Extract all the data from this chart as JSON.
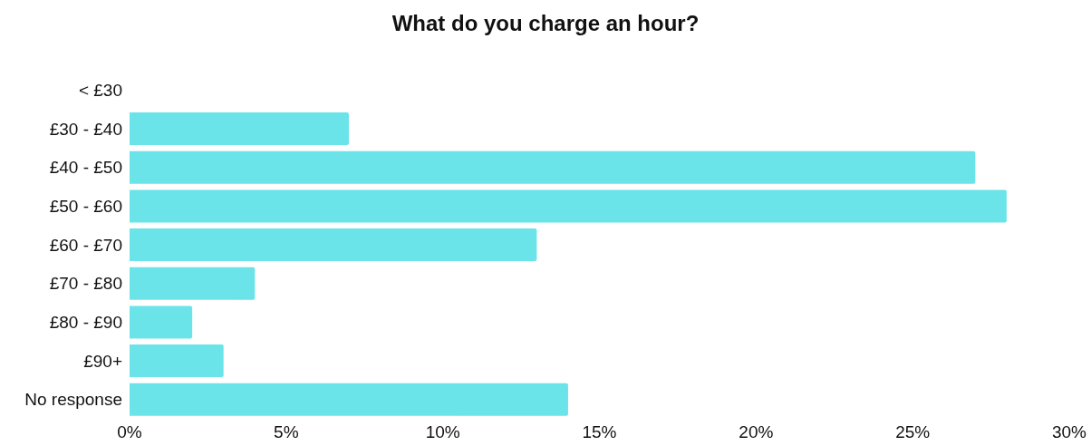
{
  "chart_data": {
    "type": "bar",
    "title": "What do you charge an hour?",
    "orientation": "horizontal",
    "categories": [
      "< £30",
      "£30 - £40",
      "£40 - £50",
      "£50 - £60",
      "£60 - £70",
      "£70 - £80",
      "£80 - £90",
      "£90+",
      "No response"
    ],
    "values": [
      0,
      7,
      27,
      28,
      13,
      4,
      2,
      3,
      14
    ],
    "color": "#6ae4e9",
    "xlim": [
      0,
      30
    ],
    "xticks": [
      {
        "value": 0,
        "label": "0%"
      },
      {
        "value": 5,
        "label": "5%"
      },
      {
        "value": 10,
        "label": "10%"
      },
      {
        "value": 15,
        "label": "15%"
      },
      {
        "value": 20,
        "label": "20%"
      },
      {
        "value": 25,
        "label": "25%"
      },
      {
        "value": 30,
        "label": "30%"
      }
    ],
    "grid": false,
    "legend": false
  }
}
